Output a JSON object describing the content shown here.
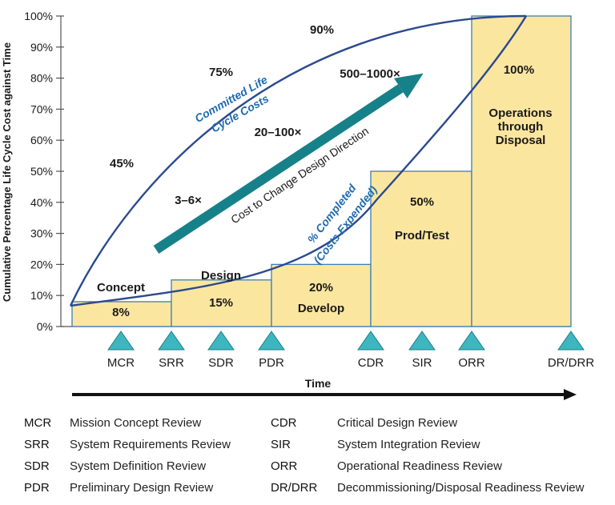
{
  "chart_data": {
    "type": "bar",
    "ylabel": "Cumulative Percentage Life Cycle Cost against Time",
    "xlabel": "Time",
    "ylim": [
      0,
      100
    ],
    "yticks": [
      "0%",
      "10%",
      "20%",
      "30%",
      "40%",
      "50%",
      "60%",
      "70%",
      "80%",
      "90%",
      "100%"
    ],
    "ytick_values": [
      0,
      10,
      20,
      30,
      40,
      50,
      60,
      70,
      80,
      90,
      100
    ],
    "phases": [
      {
        "name": "Concept",
        "value": 8,
        "label": "8%"
      },
      {
        "name": "Design",
        "value": 15,
        "label": "15%"
      },
      {
        "name": "Develop",
        "value": 20,
        "label": "20%"
      },
      {
        "name": "Prod/Test",
        "value": 50,
        "label": "50%"
      },
      {
        "name": "Operations through Disposal",
        "name_lines": [
          "Operations",
          "through",
          "Disposal"
        ],
        "value": 100,
        "label": "100%"
      }
    ],
    "milestones": [
      "MCR",
      "SRR",
      "SDR",
      "PDR",
      "CDR",
      "SIR",
      "ORR",
      "DR/DRR"
    ],
    "committed_curve": {
      "label_lines": [
        "Committed Life",
        "Cycle Costs"
      ],
      "annotations": [
        "45%",
        "75%",
        "90%"
      ]
    },
    "completed_curve": {
      "label_lines": [
        "% Completed",
        "(Costs Expended)"
      ]
    },
    "cost_to_change": {
      "label": "Cost to Change Design Direction",
      "multipliers": [
        "3–6×",
        "20–100×",
        "500–1000×"
      ]
    },
    "colors": {
      "bar_fill": "#FBE6A0",
      "bar_stroke": "#3A7FB5",
      "curve": "#2B4A8F",
      "arrow": "#17818A",
      "milestone": "#3DB6C0",
      "curve_label": "#1F6BB0",
      "text": "#1a1a1a"
    }
  },
  "legend": [
    {
      "abbr": "MCR",
      "desc": "Mission Concept Review"
    },
    {
      "abbr": "SRR",
      "desc": "System Requirements Review"
    },
    {
      "abbr": "SDR",
      "desc": "System Definition Review"
    },
    {
      "abbr": "PDR",
      "desc": "Preliminary Design Review"
    },
    {
      "abbr": "CDR",
      "desc": "Critical Design Review"
    },
    {
      "abbr": "SIR",
      "desc": "System Integration Review"
    },
    {
      "abbr": "ORR",
      "desc": "Operational Readiness Review"
    },
    {
      "abbr": "DR/DRR",
      "desc": "Decommissioning/Disposal Readiness Review"
    }
  ]
}
